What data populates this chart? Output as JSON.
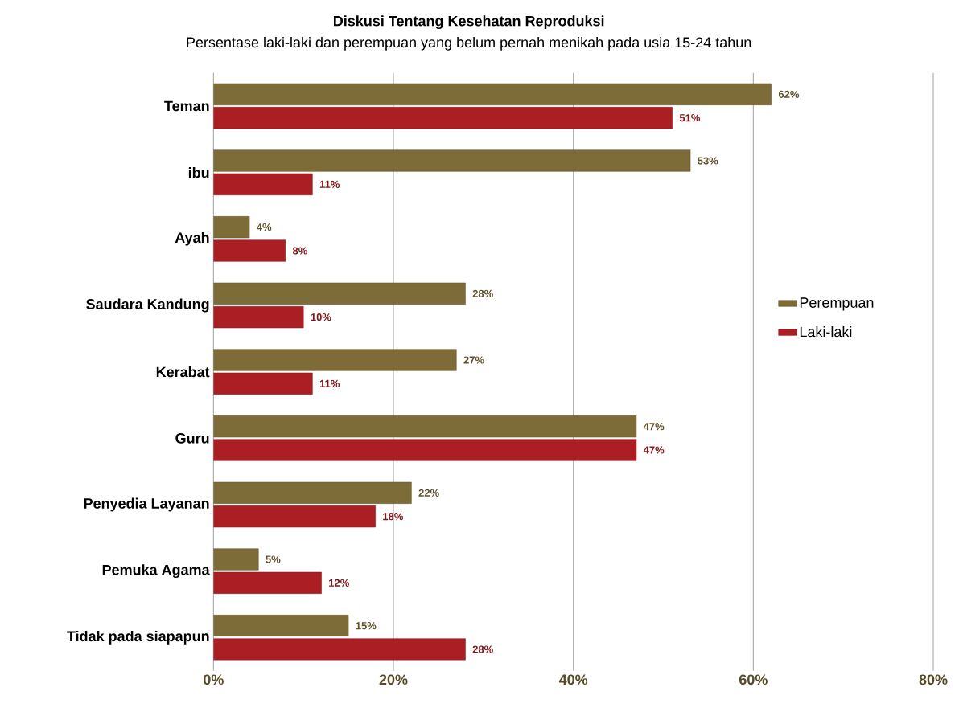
{
  "chart_data": {
    "type": "bar",
    "orientation": "horizontal",
    "title": "Diskusi Tentang Kesehatan Reproduksi",
    "subtitle": "Persentase laki-laki dan perempuan yang belum pernah menikah pada usia 15-24 tahun",
    "categories": [
      "Teman",
      "ibu",
      "Ayah",
      "Saudara Kandung",
      "Kerabat",
      "Guru",
      "Penyedia Layanan",
      "Pemuka Agama",
      "Tidak pada siapapun"
    ],
    "series": [
      {
        "name": "Perempuan",
        "color": "#7d6c38",
        "values": [
          62,
          53,
          4,
          28,
          27,
          47,
          22,
          5,
          15
        ],
        "value_labels": [
          "62%",
          "53%",
          "4%",
          "28%",
          "27%",
          "47%",
          "22%",
          "5%",
          "15%"
        ]
      },
      {
        "name": "Laki-laki",
        "color": "#ab1f24",
        "values": [
          51,
          11,
          8,
          10,
          11,
          47,
          18,
          12,
          28
        ],
        "value_labels": [
          "51%",
          "11%",
          "8%",
          "10%",
          "11%",
          "47%",
          "18%",
          "12%",
          "28%"
        ]
      }
    ],
    "xlim": [
      0,
      80
    ],
    "xticks": [
      {
        "value": 0,
        "label": "0%"
      },
      {
        "value": 20,
        "label": "20%"
      },
      {
        "value": 40,
        "label": "40%"
      },
      {
        "value": 60,
        "label": "60%"
      },
      {
        "value": 80,
        "label": "80%"
      }
    ],
    "grid": "x",
    "legend": "right"
  }
}
